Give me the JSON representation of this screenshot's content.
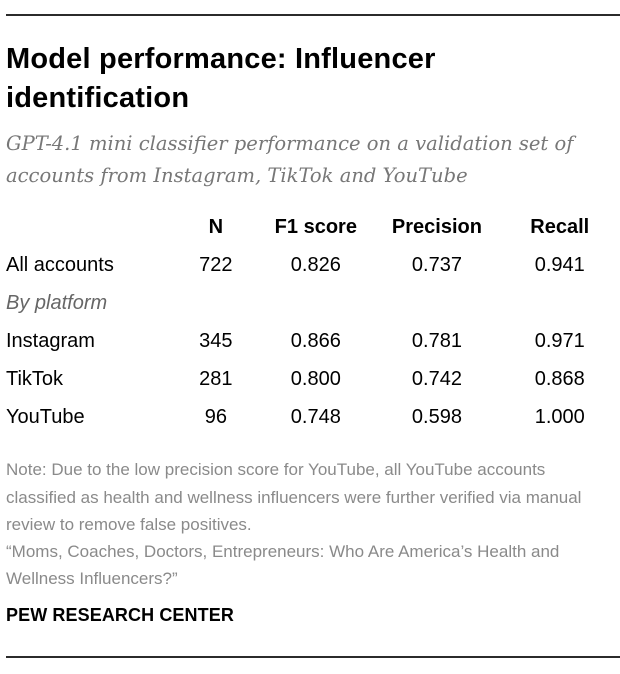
{
  "title": "Model performance: Influencer identification",
  "subtitle": "GPT-4.1 mini classifier performance on a validation set of accounts from Instagram, TikTok and YouTube",
  "table": {
    "headers": [
      "",
      "N",
      "F1 score",
      "Precision",
      "Recall"
    ],
    "rows": [
      {
        "label": "All accounts",
        "n": "722",
        "f1": "0.826",
        "precision": "0.737",
        "recall": "0.941"
      },
      {
        "group_label": "By platform"
      },
      {
        "label": "Instagram",
        "n": "345",
        "f1": "0.866",
        "precision": "0.781",
        "recall": "0.971"
      },
      {
        "label": "TikTok",
        "n": "281",
        "f1": "0.800",
        "precision": "0.742",
        "recall": "0.868"
      },
      {
        "label": "YouTube",
        "n": "96",
        "f1": "0.748",
        "precision": "0.598",
        "recall": "1.000"
      }
    ]
  },
  "note": "Note: Due to the low precision score for YouTube, all YouTube accounts classified as health and wellness influencers were further verified via manual review to remove false positives.",
  "source": "“Moms, Coaches, Doctors, Entrepreneurs: Who Are America’s Health and Wellness Influencers?”",
  "brand": "PEW RESEARCH CENTER",
  "colors": {
    "text": "#000000",
    "subtitle": "#777777",
    "note": "#8a8a8a",
    "rule": "#2b2b2b"
  }
}
